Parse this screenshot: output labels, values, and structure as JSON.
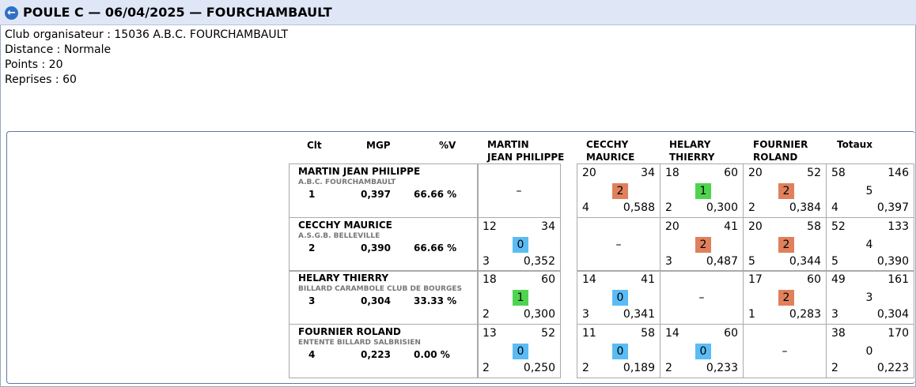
{
  "header": {
    "title": "POULE C — 06/04/2025 — FOURCHAMBAULT",
    "back_icon": "back-arrow-icon"
  },
  "info": {
    "club": "Club organisateur : 15036 A.B.C. FOURCHAMBAULT",
    "distance": "Distance : Normale",
    "points": "Points : 20",
    "reprises": "Reprises : 60"
  },
  "columns": {
    "clt": "Clt",
    "mgp": "MGP",
    "pct": "%V",
    "opp": [
      [
        "MARTIN",
        "JEAN PHILIPPE"
      ],
      [
        "CECCHY",
        "MAURICE"
      ],
      [
        "HELARY",
        "THIERRY"
      ],
      [
        "FOURNIER",
        "ROLAND"
      ]
    ],
    "totals": "Totaux"
  },
  "colors": {
    "win": "#4fd44f",
    "loss": "#5bbcf5",
    "draw_or_points2": "#e0805c"
  },
  "players": [
    {
      "name": "MARTIN JEAN PHILIPPE",
      "club": "A.B.C. FOURCHAMBAULT",
      "clt": "1",
      "mgp": "0,397",
      "pct": "66.66 %",
      "results": [
        {
          "dash": "–"
        },
        {
          "pts": "20",
          "max": "34",
          "mp": "2",
          "mp_color": "orange",
          "rep": "4",
          "avg": "0,588"
        },
        {
          "pts": "18",
          "max": "60",
          "mp": "1",
          "mp_color": "green",
          "rep": "2",
          "avg": "0,300"
        },
        {
          "pts": "20",
          "max": "52",
          "mp": "2",
          "mp_color": "orange",
          "rep": "2",
          "avg": "0,384"
        }
      ],
      "total": {
        "pts": "58",
        "max": "146",
        "mp": "5",
        "rep": "4",
        "avg": "0,397"
      }
    },
    {
      "name": "CECCHY MAURICE",
      "club": "A.S.G.B. BELLEVILLE",
      "clt": "2",
      "mgp": "0,390",
      "pct": "66.66 %",
      "results": [
        {
          "pts": "12",
          "max": "34",
          "mp": "0",
          "mp_color": "blue",
          "rep": "3",
          "avg": "0,352"
        },
        {
          "dash": "–"
        },
        {
          "pts": "20",
          "max": "41",
          "mp": "2",
          "mp_color": "orange",
          "rep": "3",
          "avg": "0,487"
        },
        {
          "pts": "20",
          "max": "58",
          "mp": "2",
          "mp_color": "orange",
          "rep": "5",
          "avg": "0,344"
        }
      ],
      "total": {
        "pts": "52",
        "max": "133",
        "mp": "4",
        "rep": "5",
        "avg": "0,390"
      }
    },
    {
      "name": "HELARY THIERRY",
      "club": "BILLARD CARAMBOLE CLUB DE BOURGES",
      "clt": "3",
      "mgp": "0,304",
      "pct": "33.33 %",
      "results": [
        {
          "pts": "18",
          "max": "60",
          "mp": "1",
          "mp_color": "green",
          "rep": "2",
          "avg": "0,300"
        },
        {
          "pts": "14",
          "max": "41",
          "mp": "0",
          "mp_color": "blue",
          "rep": "3",
          "avg": "0,341"
        },
        {
          "dash": "–"
        },
        {
          "pts": "17",
          "max": "60",
          "mp": "2",
          "mp_color": "orange",
          "rep": "1",
          "avg": "0,283"
        }
      ],
      "total": {
        "pts": "49",
        "max": "161",
        "mp": "3",
        "rep": "3",
        "avg": "0,304"
      }
    },
    {
      "name": "FOURNIER ROLAND",
      "club": "ENTENTE BILLARD SALBRISIEN",
      "clt": "4",
      "mgp": "0,223",
      "pct": "0.00 %",
      "results": [
        {
          "pts": "13",
          "max": "52",
          "mp": "0",
          "mp_color": "blue",
          "rep": "2",
          "avg": "0,250"
        },
        {
          "pts": "11",
          "max": "58",
          "mp": "0",
          "mp_color": "blue",
          "rep": "2",
          "avg": "0,189"
        },
        {
          "pts": "14",
          "max": "60",
          "mp": "0",
          "mp_color": "blue",
          "rep": "2",
          "avg": "0,233"
        },
        {
          "dash": "–"
        }
      ],
      "total": {
        "pts": "38",
        "max": "170",
        "mp": "0",
        "rep": "2",
        "avg": "0,223"
      }
    }
  ]
}
